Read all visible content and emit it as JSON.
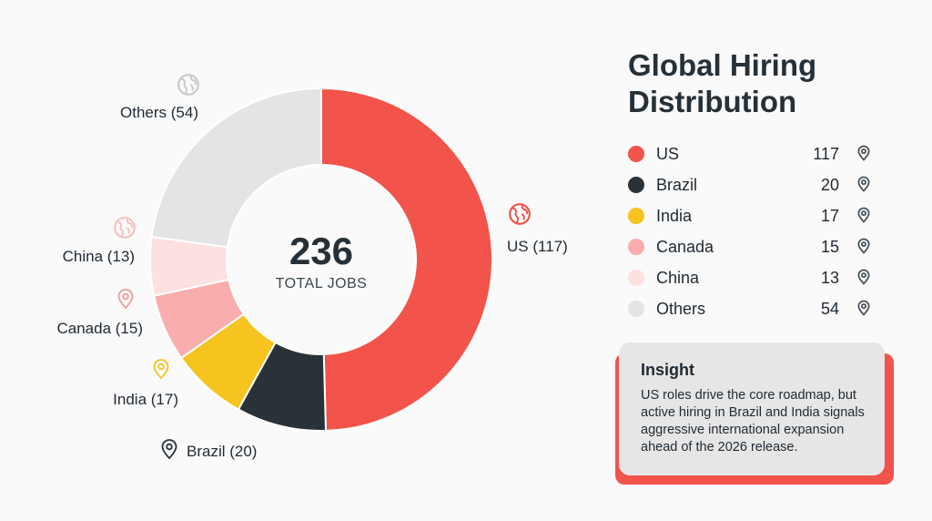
{
  "title": "Global Hiring Distribution",
  "center": {
    "total": "236",
    "label": "TOTAL JOBS"
  },
  "chart_data": {
    "type": "pie",
    "donut": true,
    "title": "Global Hiring Distribution",
    "categories": [
      "US",
      "Brazil",
      "India",
      "Canada",
      "China",
      "Others"
    ],
    "values": [
      117,
      20,
      17,
      15,
      13,
      54
    ],
    "colors": [
      "#f2534a",
      "#283238",
      "#f6c31f",
      "#f9adad",
      "#fde1e0",
      "#e4e4e4"
    ],
    "total": 236
  },
  "callouts": [
    {
      "label": "US (117)",
      "icon": "globe-icon",
      "color": "#f2534a"
    },
    {
      "label": "Brazil (20)",
      "icon": "map-pin-icon",
      "color": "#283238"
    },
    {
      "label": "India (17)",
      "icon": "map-pin-icon",
      "color": "#f6c31f"
    },
    {
      "label": "Canada (15)",
      "icon": "map-pin-icon",
      "color": "#f29a9a"
    },
    {
      "label": "China (13)",
      "icon": "globe-icon",
      "color": "#f7c1bf"
    },
    {
      "label": "Others (54)",
      "icon": "globe-icon",
      "color": "#c9c9c9"
    }
  ],
  "legend": [
    {
      "name": "US",
      "value": "117",
      "color": "#f2534a",
      "icon": "map-pin-icon"
    },
    {
      "name": "Brazil",
      "value": "20",
      "color": "#283238",
      "icon": "map-pin-icon"
    },
    {
      "name": "India",
      "value": "17",
      "color": "#f6c31f",
      "icon": "map-pin-icon"
    },
    {
      "name": "Canada",
      "value": "15",
      "color": "#f9adad",
      "icon": "map-pin-icon"
    },
    {
      "name": "China",
      "value": "13",
      "color": "#fde1e0",
      "icon": "map-pin-icon"
    },
    {
      "name": "Others",
      "value": "54",
      "color": "#e4e4e4",
      "icon": "map-pin-icon"
    }
  ],
  "insight": {
    "title": "Insight",
    "body": "US roles drive the core roadmap, but active hiring in Brazil and India signals aggressive international expansion ahead of the 2026 release."
  }
}
